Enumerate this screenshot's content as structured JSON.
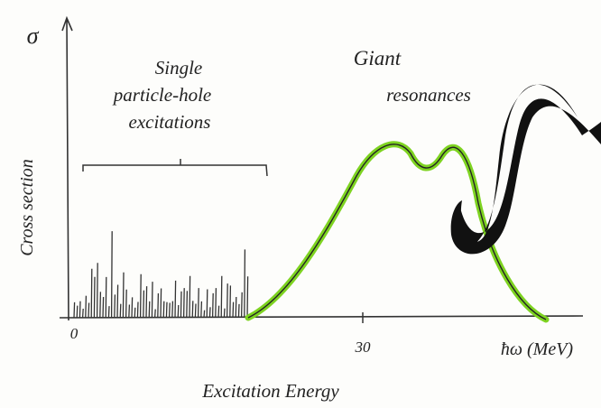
{
  "axis": {
    "y_symbol": "σ",
    "y_label": "Cross section",
    "x_label": "ħω (MeV)",
    "title": "Excitation Energy",
    "ticks": [
      "0",
      "30"
    ]
  },
  "regions": {
    "left": [
      "Single",
      "particle-hole",
      "excitations"
    ],
    "right": [
      "Giant",
      "resonances"
    ]
  }
}
